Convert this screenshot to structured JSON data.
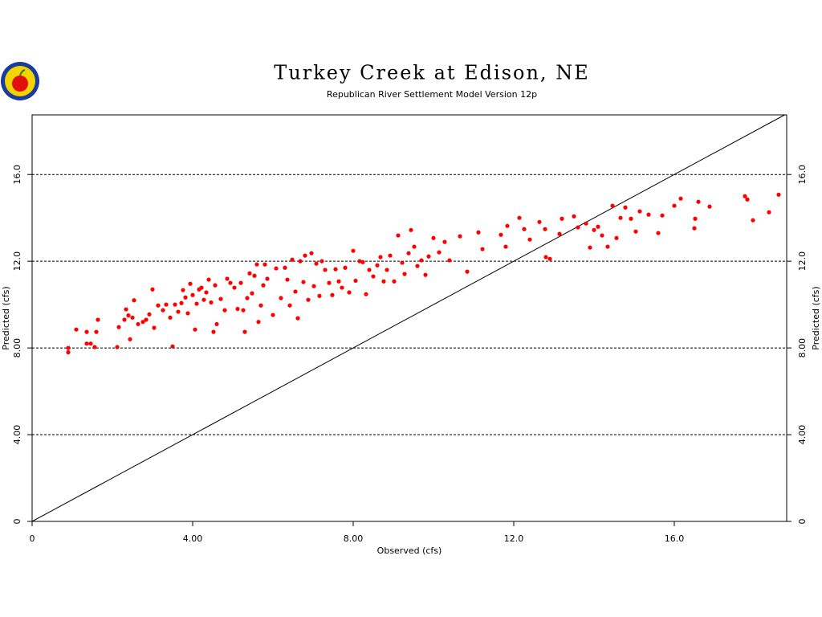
{
  "chart_data": {
    "type": "scatter",
    "title": "Turkey Creek at Edison, NE",
    "subtitle": "Republican River Settlement Model Version 12p",
    "x_label": "Observed (cfs)",
    "y_label": "Predicted (cfs)",
    "xlim": [
      0,
      18.8
    ],
    "ylim": [
      0,
      18.75
    ],
    "xticks": [
      0,
      {
        "value": 4,
        "label": "4.00"
      },
      {
        "value": 8,
        "label": "8.00"
      },
      {
        "value": 12,
        "label": "12.0"
      },
      {
        "value": 16,
        "label": "16.0"
      }
    ],
    "yticks": [
      0,
      {
        "value": 4,
        "label": "4.00"
      },
      {
        "value": 8,
        "label": "8.00"
      },
      {
        "value": 12,
        "label": "12.0"
      },
      {
        "value": 16,
        "label": "16.0"
      }
    ],
    "grid": true,
    "color": "#ff0000",
    "x": [
      0.9,
      0.9,
      1.1,
      1.36,
      1.36,
      1.46,
      1.56,
      1.6,
      1.64,
      2.12,
      2.16,
      2.3,
      2.34,
      2.4,
      2.44,
      2.5,
      2.54,
      2.64,
      2.76,
      2.84,
      2.92,
      3.0,
      3.04,
      3.14,
      3.26,
      3.34,
      3.44,
      3.5,
      3.56,
      3.64,
      3.72,
      3.76,
      3.82,
      3.88,
      3.94,
      4.0,
      4.06,
      4.1,
      4.16,
      4.22,
      4.28,
      4.34,
      4.4,
      4.46,
      4.52,
      4.56,
      4.6,
      4.7,
      4.8,
      4.86,
      4.94,
      5.04,
      5.12,
      5.2,
      5.26,
      5.3,
      5.36,
      5.42,
      5.48,
      5.54,
      5.6,
      5.64,
      5.7,
      5.76,
      5.8,
      5.86,
      6.0,
      6.08,
      6.2,
      6.3,
      6.36,
      6.42,
      6.48,
      6.56,
      6.62,
      6.68,
      6.76,
      6.8,
      6.88,
      6.96,
      7.02,
      7.08,
      7.16,
      7.22,
      7.3,
      7.4,
      7.48,
      7.56,
      7.64,
      7.72,
      7.8,
      7.9,
      8.0,
      8.06,
      8.16,
      8.24,
      8.32,
      8.4,
      8.5,
      8.6,
      8.68,
      8.76,
      8.84,
      8.92,
      9.02,
      9.12,
      9.22,
      9.28,
      9.38,
      9.44,
      9.52,
      9.6,
      9.7,
      9.8,
      9.88,
      10.0,
      10.14,
      10.28,
      10.4,
      10.66,
      10.84,
      11.12,
      11.22,
      11.68,
      11.8,
      11.84,
      12.14,
      12.26,
      12.4,
      12.64,
      12.78,
      12.8,
      12.9,
      13.14,
      13.2,
      13.5,
      13.6,
      13.8,
      13.9,
      14.0,
      14.1,
      14.2,
      14.34,
      14.46,
      14.56,
      14.66,
      14.78,
      14.92,
      15.04,
      15.14,
      15.36,
      15.6,
      15.7,
      16.0,
      16.16,
      16.5,
      16.52,
      16.6,
      16.88,
      17.76,
      17.82,
      17.96,
      18.36,
      18.6
    ],
    "values": [
      8.0,
      7.8,
      8.85,
      8.74,
      8.2,
      8.2,
      8.04,
      8.74,
      9.3,
      8.04,
      8.96,
      9.3,
      9.78,
      9.5,
      8.4,
      9.4,
      10.2,
      9.1,
      9.2,
      9.3,
      9.55,
      10.7,
      8.93,
      9.96,
      9.74,
      10.0,
      9.4,
      8.07,
      10.0,
      9.67,
      10.07,
      10.67,
      10.33,
      9.6,
      10.96,
      10.44,
      8.85,
      10.04,
      10.7,
      10.78,
      10.22,
      10.56,
      11.15,
      10.1,
      8.74,
      10.89,
      9.1,
      10.26,
      9.74,
      11.19,
      11.0,
      10.78,
      9.8,
      11.0,
      9.74,
      8.74,
      10.3,
      11.44,
      10.52,
      11.33,
      11.85,
      9.2,
      9.96,
      10.89,
      11.85,
      11.19,
      9.52,
      11.67,
      10.3,
      11.7,
      11.15,
      9.96,
      12.07,
      10.6,
      9.37,
      12.0,
      11.04,
      12.26,
      10.22,
      12.37,
      10.85,
      11.89,
      10.4,
      12.0,
      11.6,
      11.0,
      10.44,
      11.63,
      11.07,
      10.78,
      11.7,
      10.56,
      12.48,
      11.1,
      12.0,
      11.96,
      10.48,
      11.6,
      11.3,
      11.81,
      12.19,
      11.07,
      11.6,
      12.26,
      11.07,
      13.19,
      11.93,
      11.41,
      12.37,
      13.44,
      12.67,
      11.78,
      12.04,
      11.37,
      12.22,
      13.07,
      12.41,
      12.89,
      12.04,
      13.15,
      11.52,
      13.33,
      12.56,
      13.22,
      12.67,
      13.63,
      14.0,
      13.48,
      13.0,
      13.81,
      13.48,
      12.19,
      12.11,
      13.26,
      13.96,
      14.07,
      13.56,
      13.74,
      12.63,
      13.44,
      13.59,
      13.19,
      12.67,
      14.56,
      13.07,
      14.0,
      14.48,
      13.96,
      13.37,
      14.3,
      14.15,
      13.3,
      14.11,
      14.56,
      14.89,
      13.52,
      13.96,
      14.74,
      14.52,
      15.0,
      14.85,
      13.89,
      14.26,
      15.07
    ]
  }
}
